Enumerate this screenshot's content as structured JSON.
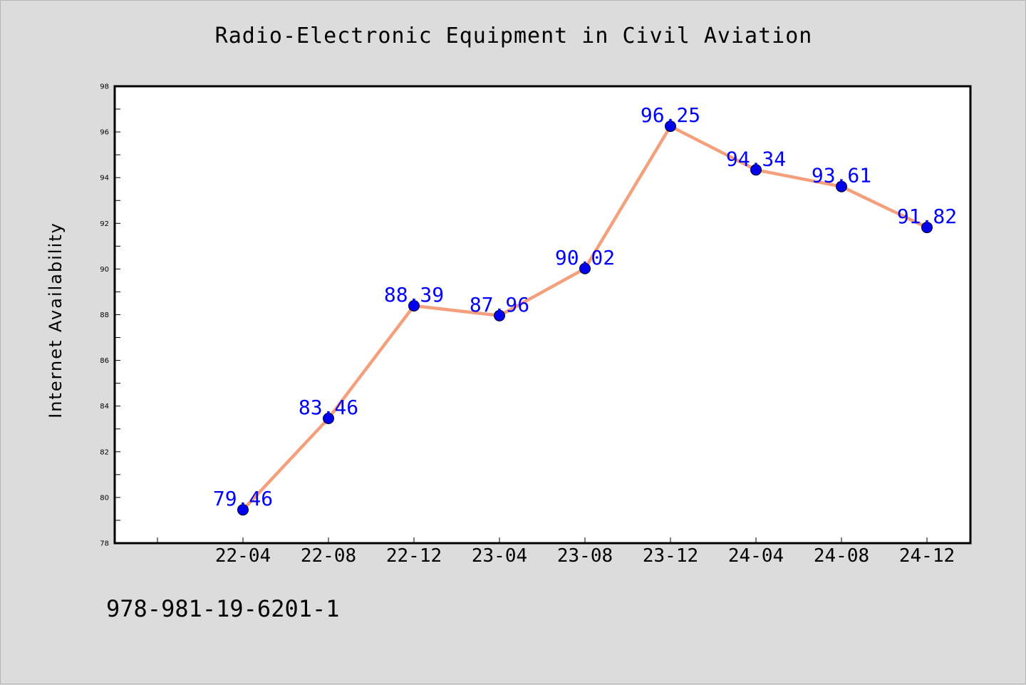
{
  "chart_data": {
    "type": "line",
    "title": "Radio-Electronic Equipment in Civil Aviation",
    "xlabel": "",
    "ylabel": "Internet Availability",
    "categories": [
      "22-04",
      "22-08",
      "22-12",
      "23-04",
      "23-08",
      "23-12",
      "24-04",
      "24-08",
      "24-12"
    ],
    "series": [
      {
        "values": [
          79.46,
          83.46,
          88.39,
          87.96,
          90.02,
          96.25,
          94.34,
          93.61,
          91.82
        ],
        "labels": [
          "79.46",
          "83.46",
          "88.39",
          "87.96",
          "90.02",
          "96.25",
          "94.34",
          "93.61",
          "91.82"
        ]
      }
    ],
    "ylim": [
      78,
      98
    ],
    "yticks": [
      "78",
      "80",
      "82",
      "84",
      "86",
      "88",
      "90",
      "92",
      "94",
      "96",
      "98"
    ],
    "grid": false,
    "legend": "none",
    "colors": {
      "line": "#f4a07c",
      "marker": "#0000ee",
      "label": "#0000ff",
      "plot_background": "#ffffff",
      "figure_background": "#dcdcdc"
    }
  },
  "footer": {
    "code": "978-981-19-6201-1"
  }
}
